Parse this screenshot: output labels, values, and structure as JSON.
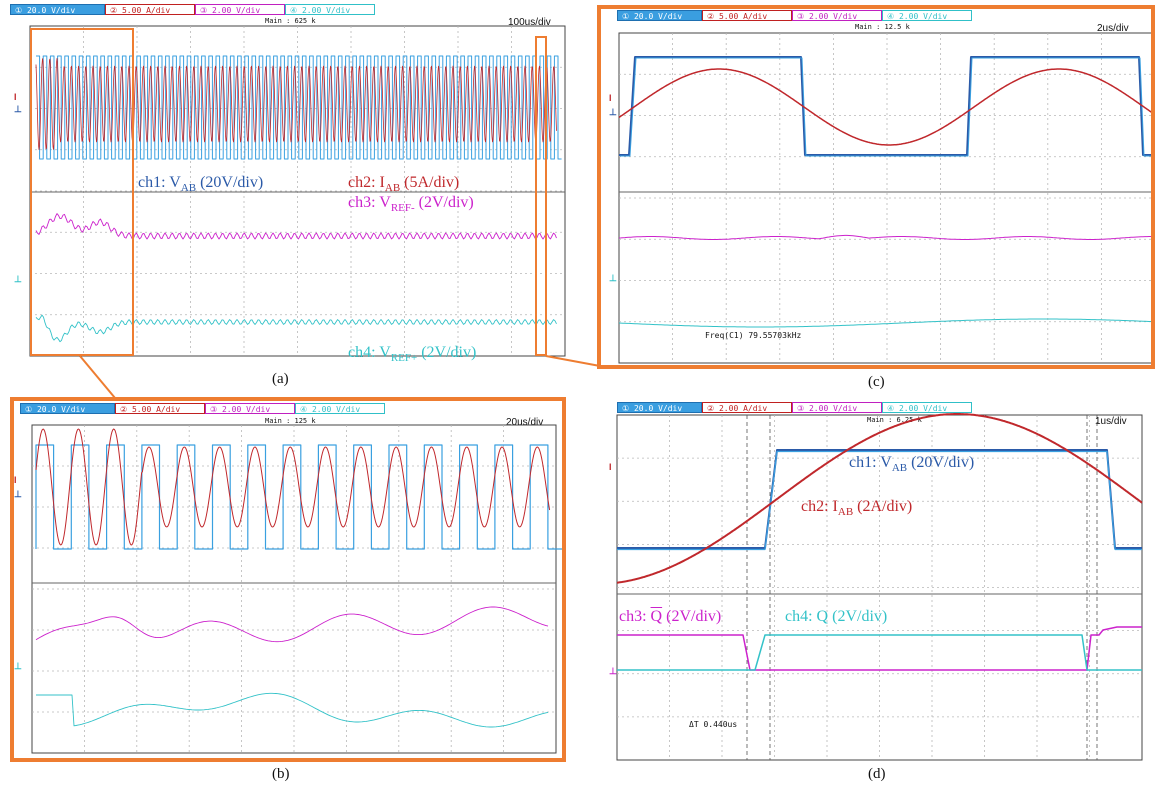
{
  "colors": {
    "ch1": "#2b5aa8",
    "ch1_light": "#3aa0e0",
    "ch2": "#c0282c",
    "ch3": "#cc22cc",
    "ch4": "#33c2c8",
    "highlight": "#ee7d31",
    "grid": "#b8b8b8"
  },
  "panels": {
    "a": {
      "caption": "(a)",
      "channel_bar": [
        "① 20.0 V/div",
        "② 5.00 A/div",
        "③ 2.00 V/div",
        "④ 2.00 V/div"
      ],
      "main_label": "Main : 625 k",
      "time_div": "100us/div",
      "annotations": {
        "ch1": {
          "pre": "ch1: V",
          "sub": "AB",
          "post": " (20V/div)"
        },
        "ch2": {
          "pre": "ch2: I",
          "sub": "AB",
          "post": " (5A/div)"
        },
        "ch3": {
          "pre": "ch3: V",
          "sub": "REF-",
          "post": " (2V/div)"
        },
        "ch4": {
          "pre": "ch4: V",
          "sub": "REF+",
          "post": " (2V/div)"
        }
      }
    },
    "b": {
      "caption": "(b)",
      "channel_bar": [
        "① 20.0 V/div",
        "② 5.00 A/div",
        "③ 2.00 V/div",
        "④ 2.00 V/div"
      ],
      "main_label": "Main : 125 k",
      "time_div": "20us/div"
    },
    "c": {
      "caption": "(c)",
      "channel_bar": [
        "① 20.0 V/div",
        "② 5.00 A/div",
        "③ 2.00 V/div",
        "④ 2.00 V/div"
      ],
      "main_label": "Main : 12.5 k",
      "time_div": "2us/div",
      "measurement": "Freq(C1)  79.55703kHz"
    },
    "d": {
      "caption": "(d)",
      "channel_bar": [
        "① 20.0 V/div",
        "② 2.00 A/div",
        "③ 2.00 V/div",
        "④ 2.00 V/div"
      ],
      "main_label": "Main : 6.25 k",
      "time_div": "1us/div",
      "measurement": "ΔT  0.440us",
      "annotations": {
        "ch1": {
          "pre": "ch1: V",
          "sub": "AB",
          "post": " (20V/div)"
        },
        "ch2": {
          "pre": "ch2: I",
          "sub": "AB",
          "post": " (2A/div)"
        },
        "ch3": {
          "pre": "ch3: ",
          "bar": "Q",
          "post": " (2V/div)"
        },
        "ch4": {
          "pre": "ch4: Q",
          "post": " (2V/div)"
        }
      }
    }
  },
  "chart_data": [
    {
      "type": "line",
      "panel": "a",
      "time_per_div_us": 100,
      "divisions": 10,
      "series": [
        {
          "name": "ch1: VAB (20V/div)",
          "kind": "square",
          "freq_khz": 79.557
        },
        {
          "name": "ch2: IAB (5A/div)",
          "kind": "sine",
          "freq_khz": 79.557
        },
        {
          "name": "ch3: VREF- (2V/div)",
          "kind": "transient"
        },
        {
          "name": "ch4: VREF+ (2V/div)",
          "kind": "transient"
        }
      ]
    },
    {
      "type": "line",
      "panel": "b",
      "time_per_div_us": 20,
      "divisions": 10,
      "series": [
        {
          "name": "ch1: VAB (20V/div)",
          "kind": "square"
        },
        {
          "name": "ch2: IAB (5A/div)",
          "kind": "sine"
        },
        {
          "name": "ch3: VREF- (2V/div)",
          "kind": "transient"
        },
        {
          "name": "ch4: VREF+ (2V/div)",
          "kind": "transient"
        }
      ]
    },
    {
      "type": "line",
      "panel": "c",
      "time_per_div_us": 2,
      "divisions": 10,
      "frequency_khz": 79.55703,
      "series": [
        {
          "name": "ch1: VAB (20V/div)",
          "kind": "square"
        },
        {
          "name": "ch2: IAB (5A/div)",
          "kind": "sine"
        },
        {
          "name": "ch3: VREF- (2V/div)",
          "kind": "flat"
        },
        {
          "name": "ch4: VREF+ (2V/div)",
          "kind": "flat"
        }
      ]
    },
    {
      "type": "line",
      "panel": "d",
      "time_per_div_us": 1,
      "divisions": 10,
      "delta_t_us": 0.44,
      "series": [
        {
          "name": "ch1: VAB (20V/div)",
          "kind": "square"
        },
        {
          "name": "ch2: IAB (2A/div)",
          "kind": "sine"
        },
        {
          "name": "ch3: Q̄ (2V/div)",
          "kind": "gate"
        },
        {
          "name": "ch4: Q (2V/div)",
          "kind": "gate"
        }
      ]
    }
  ]
}
